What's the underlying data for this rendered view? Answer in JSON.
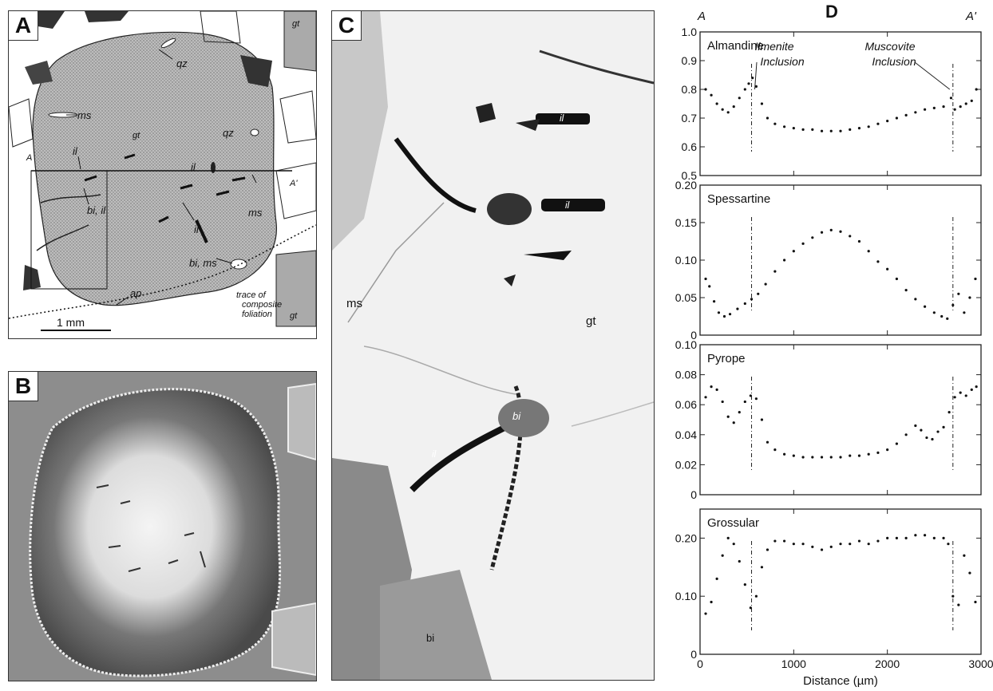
{
  "panels": {
    "a": {
      "label": "A",
      "minerals": {
        "qz1": "qz",
        "qz2": "qz",
        "ms1": "ms",
        "gt": "gt",
        "gt_top": "gt",
        "gt_bot": "gt",
        "il1": "il",
        "il2": "il",
        "il3": "il",
        "bi_il": "bi, il",
        "ms2": "ms",
        "bi_ms": "bi, ms",
        "ap": "ap"
      },
      "section_start": "A",
      "section_end": "A'",
      "scale_label": "1 mm",
      "trace_label_1": "trace of",
      "trace_label_2": "composite",
      "trace_label_3": "foliation"
    },
    "b": {
      "label": "B"
    },
    "c": {
      "label": "C",
      "ms": "ms",
      "gt": "gt",
      "il1": "il",
      "il2": "il",
      "il3": "il",
      "bi": "bi",
      "bi2": "bi"
    },
    "d": {
      "label": "D",
      "section_start": "A",
      "section_end": "A'"
    }
  },
  "chart_data": [
    {
      "type": "scatter",
      "name": "Almandine",
      "ylim": [
        0.5,
        1.0
      ],
      "yticks": [
        "1.0",
        "0.9",
        "0.8",
        "0.7",
        "0.6",
        "0.5"
      ],
      "annotations": [
        "Ilmenite",
        "Inclusion",
        "Muscovite",
        "Inclusion"
      ],
      "markers_x": [
        550,
        2700
      ],
      "x": [
        60,
        120,
        180,
        240,
        300,
        360,
        420,
        480,
        520,
        560,
        600,
        660,
        720,
        800,
        900,
        1000,
        1100,
        1200,
        1300,
        1400,
        1500,
        1600,
        1700,
        1800,
        1900,
        2000,
        2100,
        2200,
        2300,
        2400,
        2500,
        2600,
        2680,
        2720,
        2780,
        2840,
        2900,
        2950
      ],
      "y": [
        0.8,
        0.78,
        0.75,
        0.73,
        0.72,
        0.74,
        0.77,
        0.8,
        0.82,
        0.84,
        0.81,
        0.75,
        0.7,
        0.68,
        0.67,
        0.665,
        0.66,
        0.66,
        0.655,
        0.655,
        0.655,
        0.66,
        0.665,
        0.67,
        0.68,
        0.69,
        0.7,
        0.71,
        0.72,
        0.73,
        0.735,
        0.74,
        0.77,
        0.73,
        0.74,
        0.75,
        0.76,
        0.8
      ]
    },
    {
      "type": "scatter",
      "name": "Spessartine",
      "ylim": [
        0,
        0.2
      ],
      "yticks": [
        "0.20",
        "0.15",
        "0.10",
        "0.05",
        "0"
      ],
      "markers_x": [
        550,
        2700
      ],
      "x": [
        60,
        100,
        150,
        200,
        260,
        320,
        400,
        480,
        550,
        620,
        700,
        800,
        900,
        1000,
        1100,
        1200,
        1300,
        1400,
        1500,
        1600,
        1700,
        1800,
        1900,
        2000,
        2100,
        2200,
        2300,
        2400,
        2500,
        2580,
        2640,
        2700,
        2760,
        2820,
        2880,
        2940
      ],
      "y": [
        0.075,
        0.065,
        0.045,
        0.03,
        0.025,
        0.028,
        0.035,
        0.042,
        0.048,
        0.055,
        0.068,
        0.085,
        0.1,
        0.112,
        0.122,
        0.13,
        0.137,
        0.14,
        0.138,
        0.132,
        0.125,
        0.112,
        0.098,
        0.088,
        0.075,
        0.06,
        0.048,
        0.038,
        0.03,
        0.025,
        0.022,
        0.04,
        0.055,
        0.03,
        0.05,
        0.075
      ]
    },
    {
      "type": "scatter",
      "name": "Pyrope",
      "ylim": [
        0,
        0.1
      ],
      "yticks": [
        "0.10",
        "0.08",
        "0.06",
        "0.04",
        "0.02",
        "0"
      ],
      "markers_x": [
        550,
        2700
      ],
      "x": [
        60,
        120,
        180,
        240,
        300,
        360,
        420,
        480,
        540,
        600,
        660,
        720,
        800,
        900,
        1000,
        1100,
        1200,
        1300,
        1400,
        1500,
        1600,
        1700,
        1800,
        1900,
        2000,
        2100,
        2200,
        2300,
        2360,
        2420,
        2480,
        2540,
        2600,
        2660,
        2720,
        2780,
        2840,
        2900,
        2950
      ],
      "y": [
        0.065,
        0.072,
        0.07,
        0.062,
        0.052,
        0.048,
        0.055,
        0.062,
        0.066,
        0.064,
        0.05,
        0.035,
        0.03,
        0.027,
        0.026,
        0.025,
        0.025,
        0.025,
        0.025,
        0.025,
        0.026,
        0.026,
        0.027,
        0.028,
        0.03,
        0.034,
        0.04,
        0.046,
        0.043,
        0.038,
        0.037,
        0.042,
        0.045,
        0.055,
        0.065,
        0.068,
        0.066,
        0.07,
        0.072
      ]
    },
    {
      "type": "scatter",
      "name": "Grossular",
      "ylim": [
        0,
        0.25
      ],
      "yticks": [
        "0.20",
        "0.10",
        "0"
      ],
      "markers_x": [
        550,
        2700
      ],
      "x": [
        60,
        120,
        180,
        240,
        300,
        360,
        420,
        480,
        540,
        600,
        660,
        720,
        800,
        900,
        1000,
        1100,
        1200,
        1300,
        1400,
        1500,
        1600,
        1700,
        1800,
        1900,
        2000,
        2100,
        2200,
        2300,
        2400,
        2500,
        2600,
        2650,
        2700,
        2760,
        2820,
        2880,
        2940
      ],
      "y": [
        0.07,
        0.09,
        0.13,
        0.17,
        0.2,
        0.19,
        0.16,
        0.12,
        0.08,
        0.1,
        0.15,
        0.18,
        0.195,
        0.195,
        0.19,
        0.19,
        0.185,
        0.18,
        0.185,
        0.19,
        0.19,
        0.195,
        0.19,
        0.195,
        0.2,
        0.2,
        0.2,
        0.205,
        0.205,
        0.2,
        0.2,
        0.19,
        0.1,
        0.085,
        0.17,
        0.14,
        0.09
      ]
    }
  ],
  "x_axis": {
    "ticks": [
      "0",
      "1000",
      "2000",
      "3000"
    ],
    "xlim": [
      0,
      3000
    ],
    "label": "Distance (µm)"
  }
}
